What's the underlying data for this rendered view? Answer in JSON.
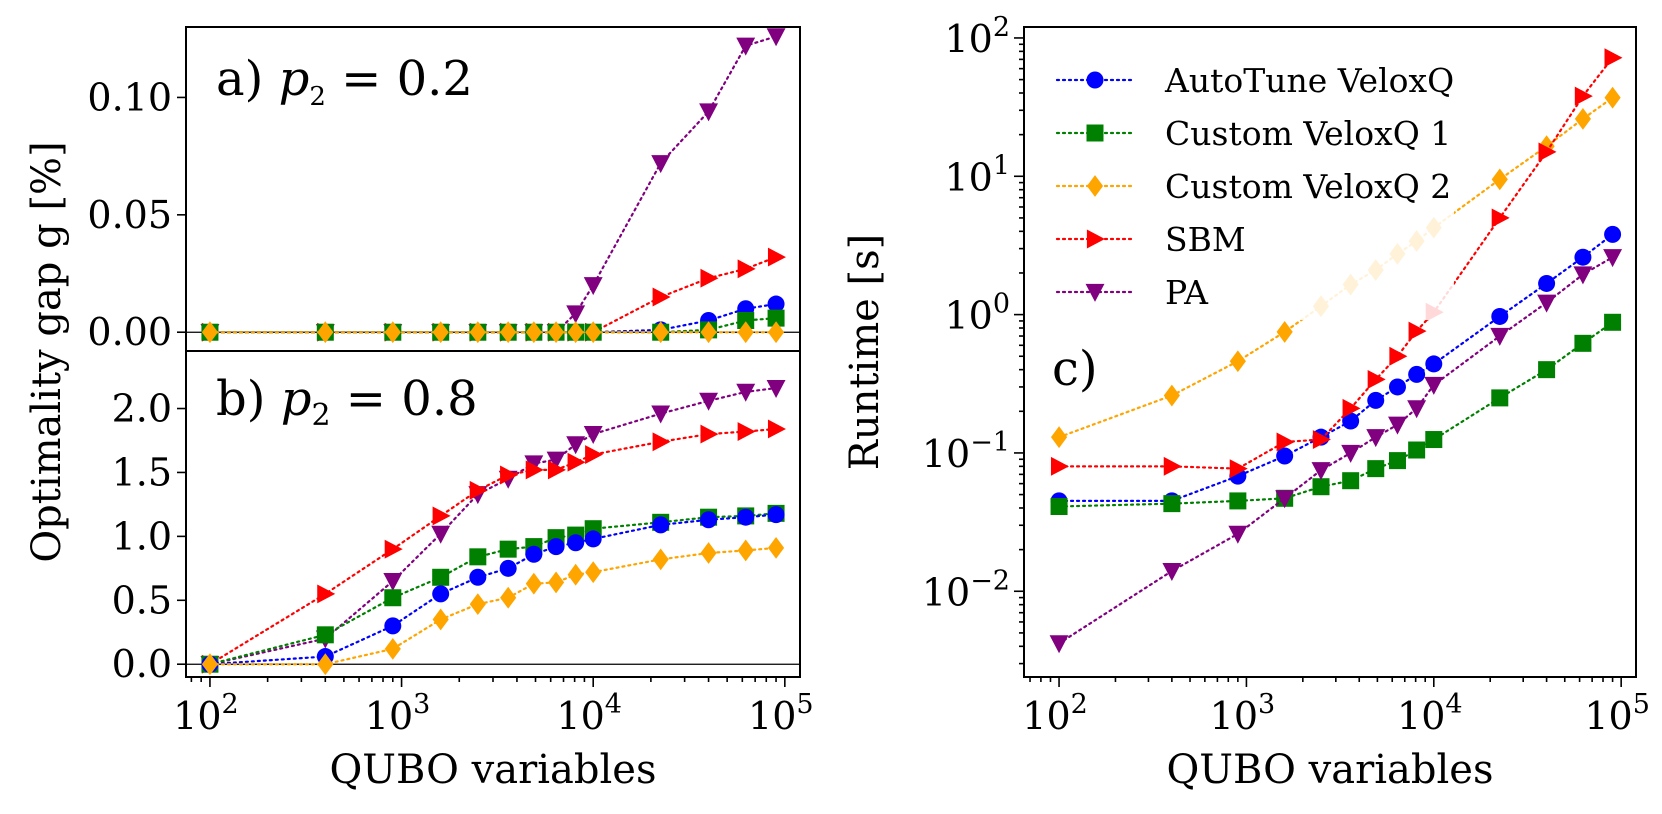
{
  "colors": {
    "AutoTune VeloxQ": "#0000ff",
    "Custom VeloxQ 1": "#008000",
    "Custom VeloxQ 2": "#ffa500",
    "SBM": "#ff0000",
    "PA": "#800080"
  },
  "chart_data": [
    {
      "id": "a",
      "type": "line",
      "panel_label": "a)",
      "panel_param": "p",
      "panel_param_sub": "2",
      "panel_value": " = 0.2",
      "xscale": "log",
      "xlim": [
        75,
        120000
      ],
      "ylim": [
        -0.008,
        0.13
      ],
      "yticks": [
        0.0,
        0.05,
        0.1
      ],
      "ytick_labels": [
        "0.00",
        "0.05",
        "0.10"
      ],
      "ylabel": "Optimality gap g [%]",
      "x": [
        100,
        400,
        900,
        1600,
        2500,
        3600,
        4900,
        6400,
        8100,
        10000,
        22500,
        40000,
        62500,
        90000
      ],
      "series": [
        {
          "name": "PA",
          "marker": "v",
          "values": [
            0,
            0,
            0,
            0,
            0,
            0,
            0,
            0,
            0.008,
            0.02,
            0.072,
            0.094,
            0.122,
            0.126
          ]
        },
        {
          "name": "SBM",
          "marker": ">",
          "values": [
            0,
            0,
            0,
            0,
            0,
            0,
            0,
            0,
            0,
            0,
            0.015,
            0.023,
            0.027,
            0.032
          ]
        },
        {
          "name": "AutoTune VeloxQ",
          "marker": "o",
          "values": [
            0,
            0,
            0,
            0,
            0,
            0,
            0,
            0,
            0,
            0,
            0.001,
            0.005,
            0.01,
            0.012
          ]
        },
        {
          "name": "Custom VeloxQ 1",
          "marker": "s",
          "values": [
            0,
            0,
            0,
            0,
            0,
            0,
            0,
            0,
            0,
            0,
            0,
            0.001,
            0.005,
            0.006
          ]
        },
        {
          "name": "Custom VeloxQ 2",
          "marker": "D",
          "values": [
            0,
            0,
            0,
            0,
            0,
            0,
            0,
            0,
            0,
            0,
            0,
            0,
            0,
            0
          ]
        }
      ]
    },
    {
      "id": "b",
      "type": "line",
      "panel_label": "b)",
      "panel_param": "p",
      "panel_param_sub": "2",
      "panel_value": " = 0.8",
      "xscale": "log",
      "xlim": [
        75,
        120000
      ],
      "ylim": [
        -0.1,
        2.45
      ],
      "yticks": [
        0.0,
        0.5,
        1.0,
        1.5,
        2.0
      ],
      "ytick_labels": [
        "0.0",
        "0.5",
        "1.0",
        "1.5",
        "2.0"
      ],
      "xlabel": "QUBO variables",
      "xtick_labels": [
        {
          "base": "10",
          "exp": "2"
        },
        {
          "base": "10",
          "exp": "3"
        },
        {
          "base": "10",
          "exp": "4"
        },
        {
          "base": "10",
          "exp": "5"
        }
      ],
      "x": [
        100,
        400,
        900,
        1600,
        2500,
        3600,
        4900,
        6400,
        8100,
        10000,
        22500,
        40000,
        62500,
        90000
      ],
      "series": [
        {
          "name": "PA",
          "marker": "v",
          "values": [
            0,
            0.2,
            0.65,
            1.02,
            1.33,
            1.45,
            1.57,
            1.6,
            1.72,
            1.8,
            1.96,
            2.06,
            2.13,
            2.16
          ]
        },
        {
          "name": "SBM",
          "marker": ">",
          "values": [
            0,
            0.55,
            0.9,
            1.16,
            1.36,
            1.48,
            1.52,
            1.52,
            1.58,
            1.64,
            1.74,
            1.8,
            1.82,
            1.84
          ]
        },
        {
          "name": "Custom VeloxQ 1",
          "marker": "s",
          "values": [
            0,
            0.23,
            0.52,
            0.68,
            0.84,
            0.9,
            0.92,
            0.99,
            1.01,
            1.06,
            1.11,
            1.15,
            1.16,
            1.18
          ]
        },
        {
          "name": "AutoTune VeloxQ",
          "marker": "o",
          "values": [
            0,
            0.06,
            0.3,
            0.55,
            0.68,
            0.75,
            0.86,
            0.92,
            0.95,
            0.98,
            1.09,
            1.13,
            1.15,
            1.17
          ]
        },
        {
          "name": "Custom VeloxQ 2",
          "marker": "D",
          "values": [
            0,
            0,
            0.12,
            0.35,
            0.47,
            0.52,
            0.63,
            0.64,
            0.7,
            0.72,
            0.82,
            0.87,
            0.89,
            0.91
          ]
        }
      ]
    },
    {
      "id": "c",
      "type": "line",
      "panel_label": "c)",
      "xscale": "log",
      "yscale": "log",
      "xlim": [
        65,
        120000
      ],
      "ylim": [
        0.0024,
        120
      ],
      "ylabel": "Runtime [s]",
      "xlabel": "QUBO variables",
      "ytick_labels": [
        {
          "base": "10",
          "exp": "−2"
        },
        {
          "base": "10",
          "exp": "−1"
        },
        {
          "base": "10",
          "exp": "0"
        },
        {
          "base": "10",
          "exp": "1"
        },
        {
          "base": "10",
          "exp": "2"
        }
      ],
      "xtick_labels": [
        {
          "base": "10",
          "exp": "2"
        },
        {
          "base": "10",
          "exp": "3"
        },
        {
          "base": "10",
          "exp": "4"
        },
        {
          "base": "10",
          "exp": "5"
        }
      ],
      "x": [
        100,
        400,
        900,
        1600,
        2500,
        3600,
        4900,
        6400,
        8100,
        10000,
        22500,
        40000,
        62500,
        90000
      ],
      "series": [
        {
          "name": "AutoTune VeloxQ",
          "marker": "o",
          "values": [
            0.045,
            0.045,
            0.068,
            0.095,
            0.13,
            0.17,
            0.24,
            0.3,
            0.37,
            0.44,
            0.97,
            1.68,
            2.6,
            3.8
          ]
        },
        {
          "name": "Custom VeloxQ 1",
          "marker": "s",
          "values": [
            0.041,
            0.043,
            0.045,
            0.047,
            0.057,
            0.063,
            0.077,
            0.088,
            0.105,
            0.125,
            0.25,
            0.4,
            0.62,
            0.88
          ]
        },
        {
          "name": "Custom VeloxQ 2",
          "marker": "D",
          "values": [
            0.13,
            0.26,
            0.46,
            0.75,
            1.15,
            1.65,
            2.1,
            2.75,
            3.4,
            4.25,
            9.5,
            16.5,
            26,
            37
          ]
        },
        {
          "name": "SBM",
          "marker": ">",
          "values": [
            0.08,
            0.08,
            0.077,
            0.12,
            0.125,
            0.21,
            0.34,
            0.5,
            0.76,
            1.04,
            5,
            15,
            38,
            72
          ]
        },
        {
          "name": "PA",
          "marker": "v",
          "values": [
            0.0042,
            0.014,
            0.026,
            0.047,
            0.075,
            0.1,
            0.13,
            0.16,
            0.21,
            0.31,
            0.7,
            1.22,
            1.95,
            2.6
          ]
        }
      ],
      "legend": {
        "position": "top-left",
        "entries": [
          {
            "name": "AutoTune VeloxQ",
            "marker": "o"
          },
          {
            "name": "Custom VeloxQ 1",
            "marker": "s"
          },
          {
            "name": "Custom VeloxQ 2",
            "marker": "D"
          },
          {
            "name": "SBM",
            "marker": ">"
          },
          {
            "name": "PA",
            "marker": "v"
          }
        ]
      }
    }
  ]
}
